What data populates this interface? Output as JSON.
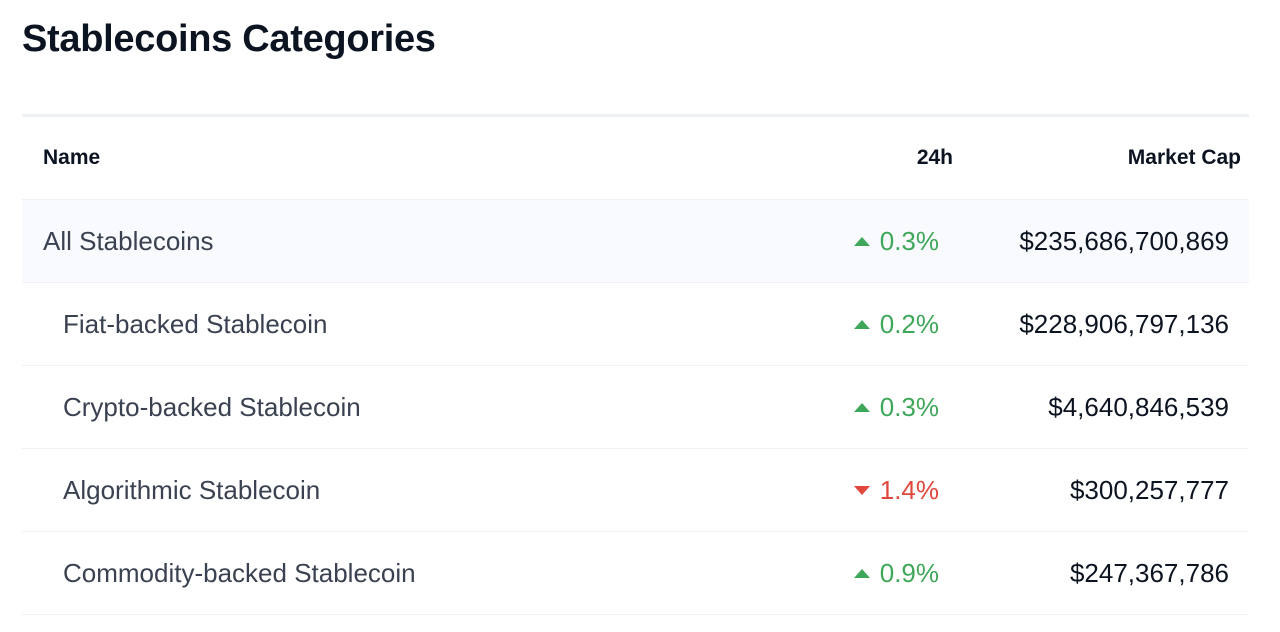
{
  "header": {
    "title": "Stablecoins Categories"
  },
  "table": {
    "columns": [
      "Name",
      "24h",
      "Market Cap"
    ],
    "rows": [
      {
        "name": "All Stablecoins",
        "change": "0.3%",
        "trend": "up",
        "market_cap": "$235,686,700,869"
      },
      {
        "name": "Fiat-backed Stablecoin",
        "change": "0.2%",
        "trend": "up",
        "market_cap": "$228,906,797,136"
      },
      {
        "name": "Crypto-backed Stablecoin",
        "change": "0.3%",
        "trend": "up",
        "market_cap": "$4,640,846,539"
      },
      {
        "name": "Algorithmic Stablecoin",
        "change": "1.4%",
        "trend": "down",
        "market_cap": "$300,257,777"
      },
      {
        "name": "Commodity-backed Stablecoin",
        "change": "0.9%",
        "trend": "up",
        "market_cap": "$247,367,786"
      }
    ]
  }
}
